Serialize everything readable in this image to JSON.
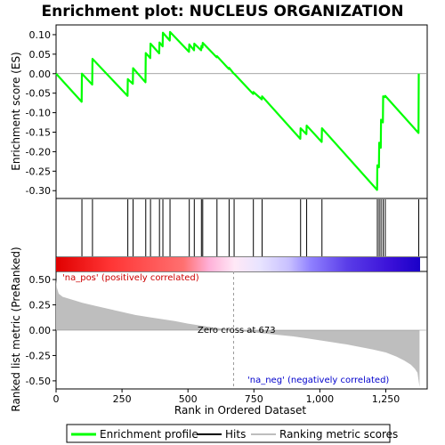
{
  "chart_data": {
    "type": "line",
    "title": "Enrichment plot: NUCLEUS ORGANIZATION",
    "xlabel": "Rank in Ordered Dataset",
    "ylabel_top": "Enrichment score (ES)",
    "ylabel_bottom": "Ranked list metric (PreRanked)",
    "xlim": [
      0,
      1380
    ],
    "x_ticks": [
      0,
      250,
      500,
      750,
      1000,
      1250
    ],
    "x_tick_labels": [
      "0",
      "250",
      "500",
      "750",
      "1,000",
      "1,250"
    ],
    "es_ylim": [
      -0.32,
      0.125
    ],
    "es_ticks": [
      0.1,
      0.05,
      0.0,
      -0.05,
      -0.1,
      -0.15,
      -0.2,
      -0.25,
      -0.3
    ],
    "es_tick_labels": [
      "0.10",
      "0.05",
      "0.00",
      "-0.05",
      "-0.10",
      "-0.15",
      "-0.20",
      "-0.25",
      "-0.30"
    ],
    "metric_ylim": [
      -0.58,
      0.58
    ],
    "metric_ticks": [
      0.5,
      0.25,
      0.0,
      -0.25,
      -0.5
    ],
    "metric_tick_labels": [
      "0.50",
      "0.25",
      "0.00",
      "-0.25",
      "-0.50"
    ],
    "hits": [
      98,
      138,
      272,
      292,
      340,
      358,
      392,
      405,
      432,
      505,
      524,
      551,
      556,
      610,
      656,
      675,
      748,
      781,
      927,
      950,
      1008,
      1218,
      1225,
      1232,
      1240,
      1248,
      1375
    ],
    "series": [
      {
        "name": "Enrichment profile",
        "x": [
          0,
          97,
          98,
          137,
          138,
          271,
          272,
          291,
          292,
          339,
          340,
          357,
          358,
          391,
          392,
          404,
          405,
          431,
          432,
          504,
          505,
          523,
          524,
          550,
          551,
          555,
          556,
          609,
          610,
          655,
          656,
          674,
          675,
          747,
          748,
          780,
          781,
          926,
          927,
          949,
          950,
          1007,
          1008,
          1217,
          1218,
          1224,
          1225,
          1231,
          1232,
          1239,
          1240,
          1247,
          1248,
          1374,
          1375
        ],
        "y": [
          0.0,
          -0.072,
          0.0,
          -0.028,
          0.038,
          -0.057,
          -0.014,
          -0.026,
          0.014,
          -0.022,
          0.053,
          0.04,
          0.077,
          0.052,
          0.08,
          0.07,
          0.105,
          0.085,
          0.107,
          0.056,
          0.075,
          0.06,
          0.077,
          0.06,
          0.071,
          0.067,
          0.079,
          0.042,
          0.045,
          0.012,
          0.015,
          0.0,
          0.0,
          -0.052,
          -0.047,
          -0.066,
          -0.058,
          -0.167,
          -0.14,
          -0.155,
          -0.133,
          -0.175,
          -0.14,
          -0.298,
          -0.235,
          -0.24,
          -0.177,
          -0.19,
          -0.118,
          -0.125,
          -0.058,
          -0.06,
          -0.057,
          -0.152,
          0.0
        ]
      }
    ],
    "metric_curve": {
      "x": [
        0,
        3,
        10,
        25,
        50,
        100,
        150,
        200,
        250,
        300,
        350,
        400,
        450,
        500,
        550,
        600,
        650,
        673,
        700,
        750,
        800,
        850,
        900,
        950,
        1000,
        1050,
        1100,
        1150,
        1200,
        1250,
        1290,
        1320,
        1345,
        1360,
        1370,
        1378
      ],
      "y": [
        0.5,
        0.42,
        0.36,
        0.33,
        0.31,
        0.27,
        0.24,
        0.21,
        0.18,
        0.15,
        0.13,
        0.11,
        0.09,
        0.065,
        0.045,
        0.025,
        0.01,
        0.0,
        -0.01,
        -0.022,
        -0.035,
        -0.048,
        -0.062,
        -0.08,
        -0.1,
        -0.12,
        -0.14,
        -0.165,
        -0.19,
        -0.22,
        -0.26,
        -0.3,
        -0.34,
        -0.38,
        -0.42,
        -0.56
      ]
    },
    "zero_cross_rank": 673,
    "annotations": {
      "pos_label": "'na_pos' (positively correlated)",
      "neg_label": "'na_neg' (negatively correlated)",
      "zero_cross": "Zero cross at 673"
    },
    "legend": [
      "Enrichment profile",
      "Hits",
      "Ranking metric scores"
    ],
    "colors": {
      "profile": "#00ff00",
      "hits": "#000000",
      "metric_fill": "#bebebe",
      "pos_label": "#cc0000",
      "neg_label": "#0000cc",
      "heat_pos": "#ff0000",
      "heat_neg": "#0000ff"
    }
  }
}
